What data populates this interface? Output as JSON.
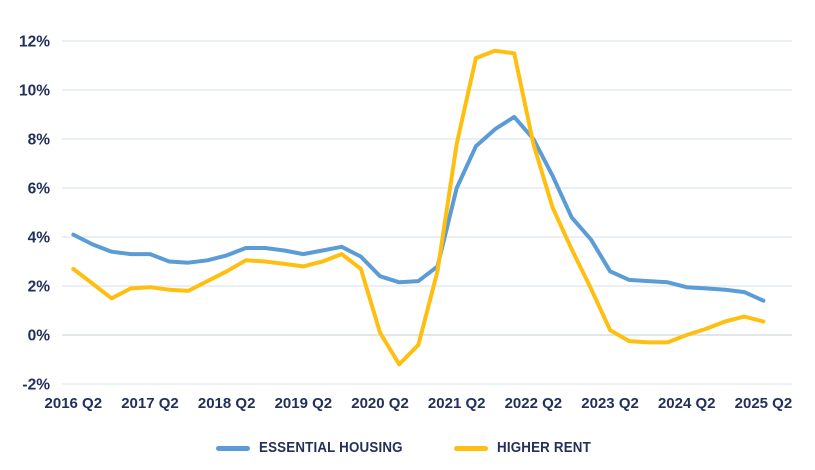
{
  "chart_data": {
    "type": "line",
    "categories": [
      "2016 Q2",
      "2016 Q3",
      "2016 Q4",
      "2017 Q1",
      "2017 Q2",
      "2017 Q3",
      "2017 Q4",
      "2018 Q1",
      "2018 Q2",
      "2018 Q3",
      "2018 Q4",
      "2019 Q1",
      "2019 Q2",
      "2019 Q3",
      "2019 Q4",
      "2020 Q1",
      "2020 Q2",
      "2020 Q3",
      "2020 Q4",
      "2021 Q1",
      "2021 Q2",
      "2021 Q3",
      "2021 Q4",
      "2022 Q1",
      "2022 Q2",
      "2022 Q3",
      "2022 Q4",
      "2023 Q1",
      "2023 Q2",
      "2023 Q3",
      "2023 Q4",
      "2024 Q1",
      "2024 Q2",
      "2024 Q3",
      "2024 Q4",
      "2025 Q1",
      "2025 Q2"
    ],
    "series": [
      {
        "name": "ESSENTIAL HOUSING",
        "color": "#5B9CD6",
        "values": [
          4.1,
          3.7,
          3.4,
          3.3,
          3.3,
          3.0,
          2.95,
          3.05,
          3.25,
          3.55,
          3.55,
          3.45,
          3.3,
          3.45,
          3.6,
          3.2,
          2.4,
          2.15,
          2.2,
          2.8,
          6.0,
          7.7,
          8.4,
          8.9,
          8.0,
          6.5,
          4.8,
          3.9,
          2.6,
          2.25,
          2.2,
          2.15,
          1.95,
          1.9,
          1.85,
          1.75,
          1.4
        ]
      },
      {
        "name": "HIGHER RENT",
        "color": "#FEBF10",
        "values": [
          2.7,
          2.1,
          1.5,
          1.9,
          1.95,
          1.85,
          1.8,
          2.2,
          2.6,
          3.05,
          3.0,
          2.9,
          2.8,
          3.0,
          3.3,
          2.7,
          0.1,
          -1.2,
          -0.4,
          2.6,
          7.8,
          11.3,
          11.6,
          11.5,
          7.8,
          5.2,
          3.5,
          1.9,
          0.2,
          -0.25,
          -0.3,
          -0.3,
          0.0,
          0.25,
          0.55,
          0.75,
          0.55
        ]
      }
    ],
    "y_ticks": [
      12,
      10,
      8,
      6,
      4,
      2,
      0,
      -2
    ],
    "y_tick_labels": [
      "12%",
      "10%",
      "8%",
      "6%",
      "4%",
      "2%",
      "0%",
      "-2%"
    ],
    "x_tick_labels": [
      "2016 Q2",
      "2017 Q2",
      "2018 Q2",
      "2019 Q2",
      "2020 Q2",
      "2021 Q2",
      "2022 Q2",
      "2023 Q2",
      "2024 Q2",
      "2025 Q2"
    ],
    "x_tick_every": 4,
    "title": "",
    "xlabel": "",
    "ylabel": "",
    "ylim": [
      -2,
      12
    ],
    "grid": "horizontal",
    "legend_position": "bottom",
    "colors": {
      "grid_line": "#E4EBF2",
      "zero_line": "#D7DDE2",
      "tick_text": "#22305C",
      "background": "#FFFFFF"
    }
  }
}
